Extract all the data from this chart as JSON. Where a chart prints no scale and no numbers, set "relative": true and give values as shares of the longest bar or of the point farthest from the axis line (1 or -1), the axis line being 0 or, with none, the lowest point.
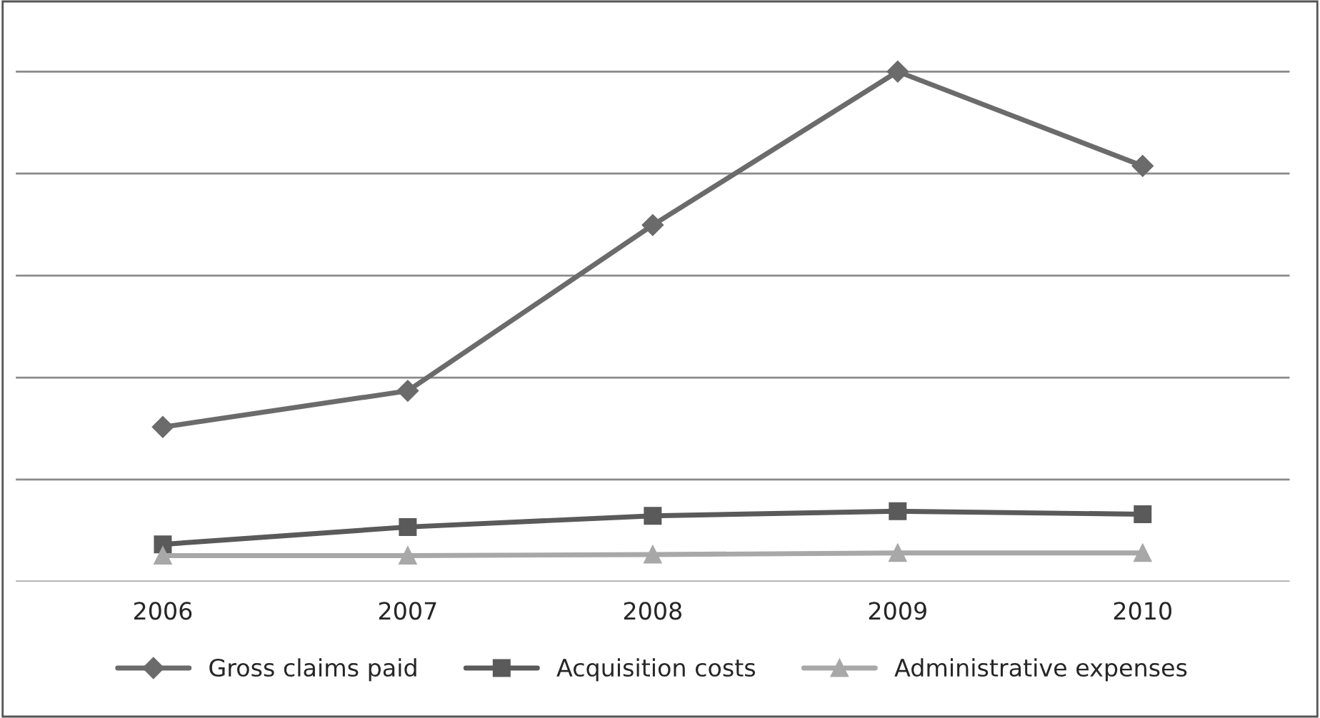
{
  "chart_data": {
    "type": "line",
    "relative": true,
    "categories": [
      "2006",
      "2007",
      "2008",
      "2009",
      "2010"
    ],
    "series": [
      {
        "name": "Gross claims paid",
        "color": "#6b6b6b",
        "marker": "diamond",
        "values": [
          0.303,
          0.374,
          0.699,
          1,
          0.815
        ]
      },
      {
        "name": "Acquisition costs",
        "color": "#5a5a5a",
        "marker": "square",
        "values": [
          0.073,
          0.107,
          0.129,
          0.138,
          0.132
        ]
      },
      {
        "name": "Administrative expenses",
        "color": "#a8a8a8",
        "marker": "triangle",
        "values": [
          0.051,
          0.051,
          0.053,
          0.056,
          0.056
        ]
      }
    ],
    "grid": "y",
    "legend": "bottom",
    "line_style": "solid"
  }
}
